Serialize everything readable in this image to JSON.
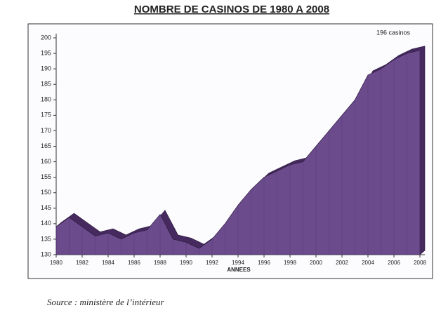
{
  "chart_data": {
    "type": "area3d",
    "title": "NOMBRE DE CASINOS DE 1980 A 2008",
    "x_label": "ANNEES",
    "annotation": "196 casinos",
    "source": "Source : ministère de l’intérieur",
    "x": [
      1980,
      1981,
      1982,
      1983,
      1984,
      1985,
      1986,
      1987,
      1988,
      1989,
      1990,
      1991,
      1992,
      1993,
      1994,
      1995,
      1996,
      1997,
      1998,
      1999,
      2000,
      2001,
      2002,
      2003,
      2004,
      2005,
      2006,
      2007,
      2008
    ],
    "values": [
      139,
      142,
      139,
      136,
      137,
      135,
      137,
      138,
      143,
      135,
      134,
      132,
      135,
      140,
      146,
      151,
      155,
      157,
      159,
      160,
      165,
      170,
      175,
      180,
      188,
      190,
      193,
      195,
      196
    ],
    "color": "#6b4b8c",
    "top_color": "#46295f",
    "xlim": [
      1980,
      2008
    ],
    "xticks": [
      1980,
      1982,
      1984,
      1986,
      1988,
      1990,
      1992,
      1994,
      1996,
      1998,
      2000,
      2002,
      2004,
      2006,
      2008
    ],
    "ylim": [
      130,
      200
    ],
    "yticks": [
      130,
      135,
      140,
      145,
      150,
      155,
      160,
      165,
      170,
      175,
      180,
      185,
      190,
      195,
      200
    ]
  }
}
